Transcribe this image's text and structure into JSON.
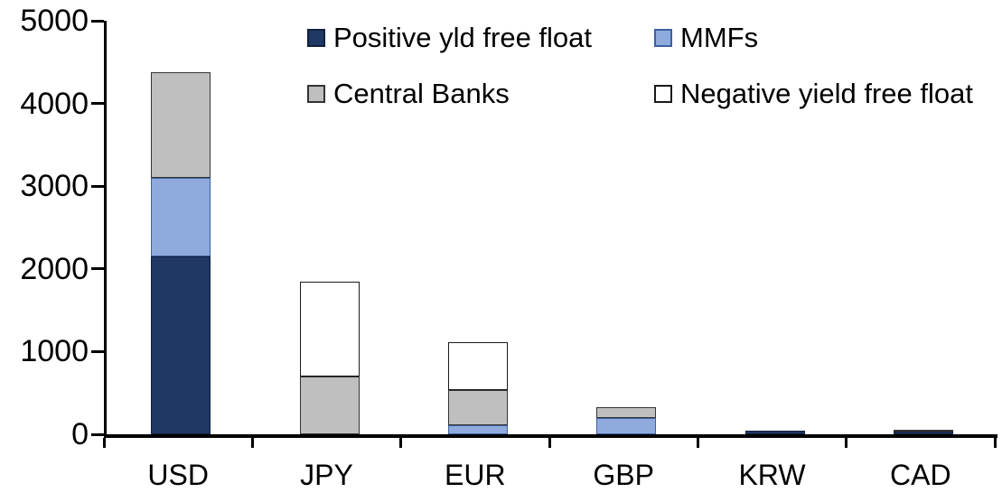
{
  "chart_data": {
    "type": "bar",
    "stacked": true,
    "title": "",
    "xlabel": "",
    "ylabel": "",
    "grid": false,
    "legend_position": "top",
    "background": "#FFFFFF",
    "axis_color": "#000000",
    "ylim": [
      0,
      5000
    ],
    "ytick_step": 1000,
    "yticks": [
      "0",
      "1000",
      "2000",
      "3000",
      "4000",
      "5000"
    ],
    "categories": [
      "USD",
      "JPY",
      "EUR",
      "GBP",
      "KRW",
      "CAD"
    ],
    "series": [
      {
        "name": "Positive yld free float",
        "color": "#1F3864",
        "border_color": "#10203C",
        "values": [
          2150,
          0,
          0,
          0,
          40,
          30
        ]
      },
      {
        "name": "MMFs",
        "color": "#8FAADC",
        "border_color": "#3C619F",
        "values": [
          950,
          0,
          110,
          200,
          0,
          0
        ]
      },
      {
        "name": "Central Banks",
        "color": "#BFBFBF",
        "border_color": "#333333",
        "values": [
          1280,
          700,
          430,
          130,
          0,
          30
        ]
      },
      {
        "name": "Negative yield free float",
        "color": "#FFFFFF",
        "border_color": "#1A1A1A",
        "values": [
          0,
          1140,
          570,
          0,
          0,
          0
        ]
      }
    ],
    "totals": [
      4380,
      1840,
      1110,
      330,
      40,
      60
    ]
  }
}
